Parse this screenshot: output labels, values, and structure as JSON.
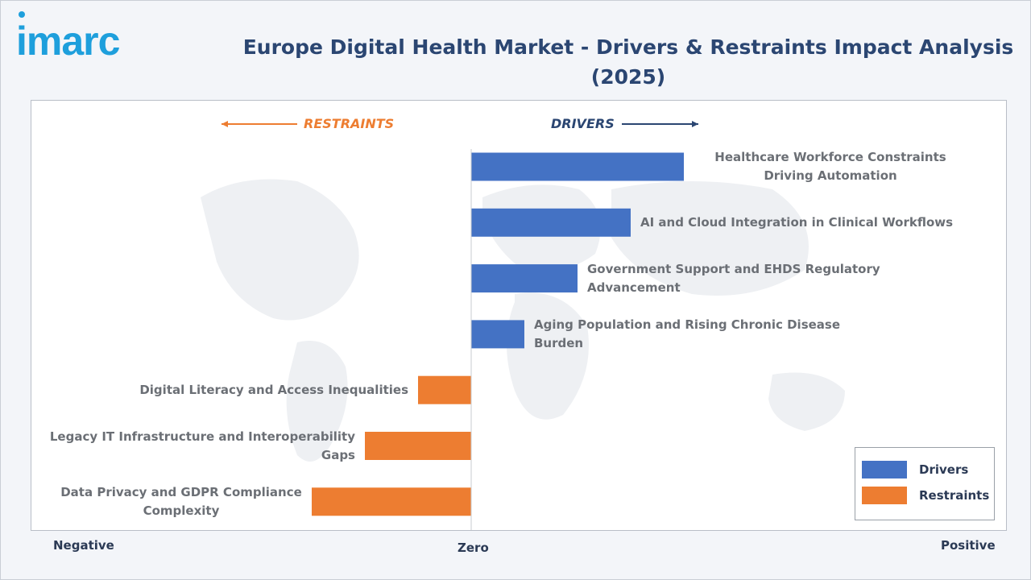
{
  "brand": {
    "logo_text": "imarc"
  },
  "chart_data": {
    "type": "bar",
    "orientation": "horizontal",
    "title": "Europe Digital Health Market - Drivers & Restraints Impact Analysis (2025)",
    "direction_labels": {
      "restraints": "RESTRAINTS",
      "drivers": "DRIVERS"
    },
    "axis_labels": {
      "negative": "Negative",
      "zero": "Zero",
      "positive": "Positive"
    },
    "categories": [
      "Healthcare Workforce Constraints Driving Automation",
      "AI and Cloud Integration in Clinical Workflows",
      "Government Support and EHDS Regulatory Advancement",
      "Aging Population and Rising Chronic Disease Burden",
      "Digital Literacy and Access Inequalities",
      "Legacy IT Infrastructure and Interoperability Gaps",
      "Data Privacy and GDPR Compliance Complexity"
    ],
    "values": [
      4,
      3,
      2,
      1,
      -1,
      -2,
      -3
    ],
    "series": [
      {
        "name": "Drivers",
        "color": "#4472c4"
      },
      {
        "name": "Restraints",
        "color": "#ed7d31"
      }
    ],
    "series_assignment": [
      "Drivers",
      "Drivers",
      "Drivers",
      "Drivers",
      "Restraints",
      "Restraints",
      "Restraints"
    ],
    "legend_position": "bottom-right",
    "grid": false
  }
}
